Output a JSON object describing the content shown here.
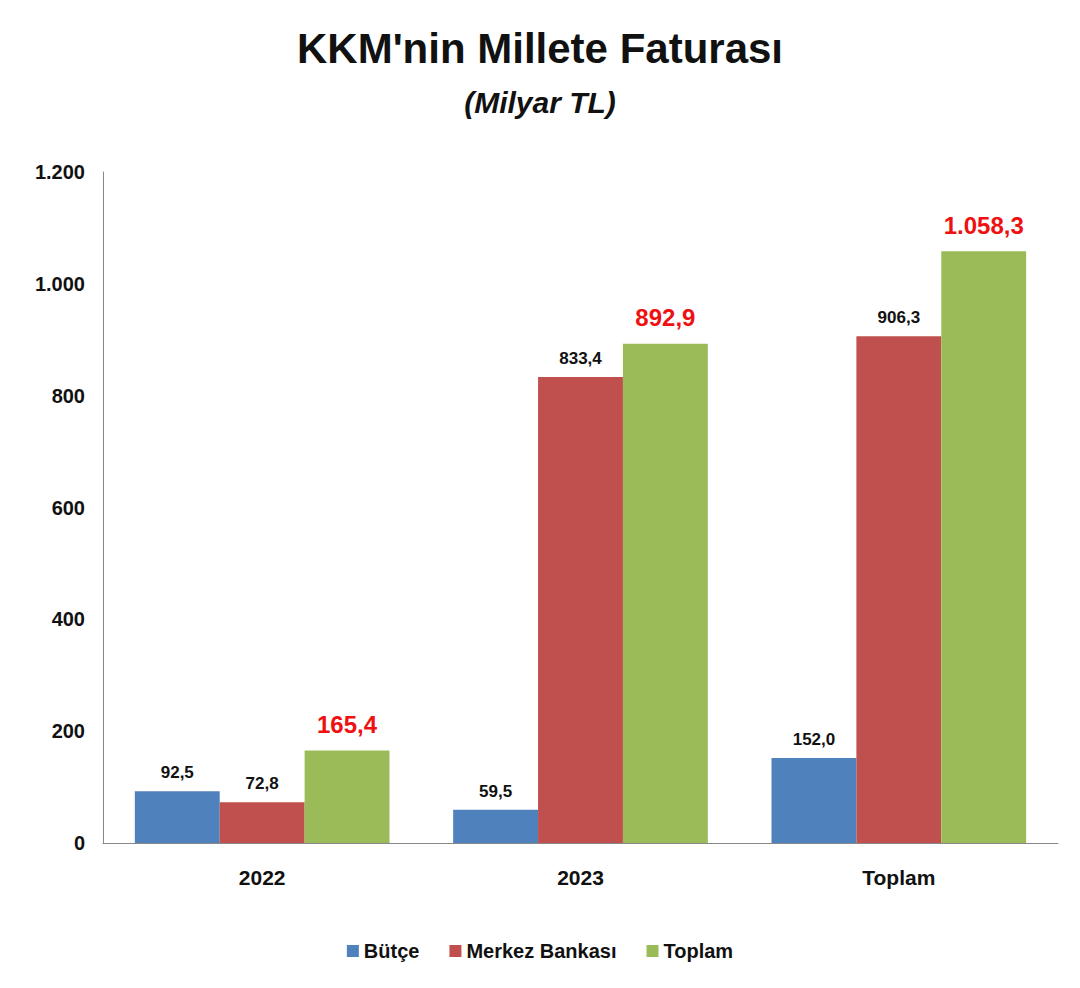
{
  "chart_data": {
    "type": "bar",
    "title": "KKM'nin Millete Faturası",
    "subtitle": "(Milyar TL)",
    "categories": [
      "2022",
      "2023",
      "Toplam"
    ],
    "series": [
      {
        "name": "Bütçe",
        "color": "#4f81bd",
        "values": [
          92.5,
          59.5,
          152.0
        ],
        "value_labels": [
          "92,5",
          "59,5",
          "152,0"
        ]
      },
      {
        "name": "Merkez Bankası",
        "color": "#c0504d",
        "values": [
          72.8,
          833.4,
          906.3
        ],
        "value_labels": [
          "72,8",
          "833,4",
          "906,3"
        ]
      },
      {
        "name": "Toplam",
        "color": "#9bbb59",
        "values": [
          165.4,
          892.9,
          1058.3
        ],
        "value_labels": [
          "165,4",
          "892,9",
          "1.058,3"
        ]
      }
    ],
    "ylim": [
      0,
      1200
    ],
    "yticks": [
      0,
      200,
      400,
      600,
      800,
      {
        "value": 1000,
        "label": "1.000"
      },
      {
        "value": 1200,
        "label": "1.200"
      }
    ],
    "grid": false,
    "legend": "bottom",
    "data_labels": true
  }
}
